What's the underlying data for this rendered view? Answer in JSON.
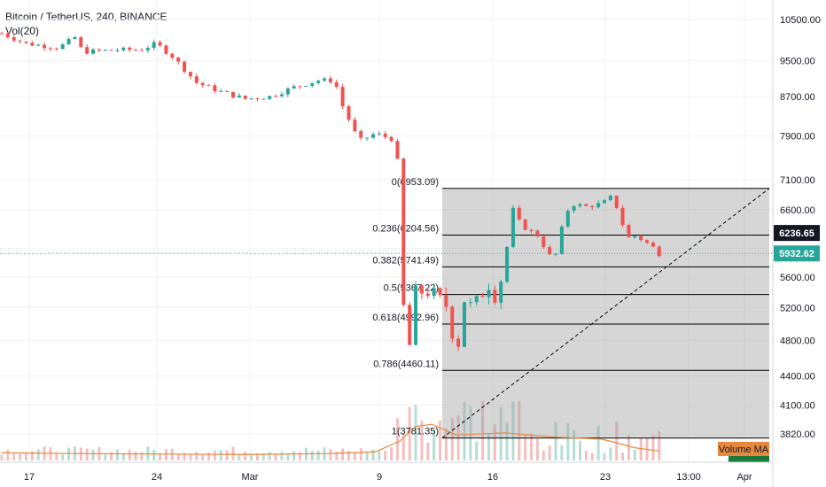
{
  "chart_data": {
    "type": "candlestick",
    "title": "Bitcoin / TetherUS, 240, BINANCE",
    "indicator_label": "Vol(20)",
    "volume_ma_label": "Volume MA",
    "y_scale": "log",
    "ylim": [
      3500,
      11000
    ],
    "y_ticks": [
      10500,
      9500,
      8700,
      7900,
      7100,
      6600,
      6000,
      5600,
      5200,
      4800,
      4400,
      4100,
      3820
    ],
    "y_tick_labels": [
      "10500.00",
      "9500.00",
      "8700.00",
      "7900.00",
      "7100.00",
      "6600.00",
      "6000.00",
      "5600.00",
      "5200.00",
      "4800.00",
      "4400.00",
      "4100.00",
      "3820.00"
    ],
    "x_labels": [
      "17",
      "24",
      "Mar",
      "9",
      "16",
      "23",
      "13:00",
      "Apr"
    ],
    "price_labels": [
      {
        "value": 6236.65,
        "text": "6236.65",
        "color": "#131722"
      },
      {
        "value": 5932.62,
        "text": "5932.62",
        "color": "#26a69a"
      }
    ],
    "fibonacci": {
      "levels": [
        {
          "ratio": "0",
          "price": 6953.09,
          "label": "0(6953.09)"
        },
        {
          "ratio": "0.236",
          "price": 6204.56,
          "label": "0.236(6204.56)"
        },
        {
          "ratio": "0.382",
          "price": 5741.49,
          "label": "0.382(5741.49)"
        },
        {
          "ratio": "0.5",
          "price": 5367.22,
          "label": "0.5(5367.22)"
        },
        {
          "ratio": "0.618",
          "price": 4992.96,
          "label": "0.618(4992.96)"
        },
        {
          "ratio": "0.786",
          "price": 4460.11,
          "label": "0.786(4460.11)"
        },
        {
          "ratio": "1",
          "price": 3781.35,
          "label": "1(3781.35)"
        }
      ]
    },
    "path": [
      {
        "t": 0,
        "p": 10150
      },
      {
        "t": 3,
        "p": 9900
      },
      {
        "t": 7,
        "p": 9800
      },
      {
        "t": 9,
        "p": 10050
      },
      {
        "t": 10,
        "p": 9700
      },
      {
        "t": 14,
        "p": 9750
      },
      {
        "t": 17,
        "p": 9750
      },
      {
        "t": 19,
        "p": 9900
      },
      {
        "t": 21,
        "p": 9600
      },
      {
        "t": 24,
        "p": 9000
      },
      {
        "t": 27,
        "p": 8800
      },
      {
        "t": 30,
        "p": 8650
      },
      {
        "t": 33,
        "p": 8700
      },
      {
        "t": 36,
        "p": 8900
      },
      {
        "t": 39,
        "p": 9050
      },
      {
        "t": 41,
        "p": 9050
      },
      {
        "t": 42,
        "p": 8500
      },
      {
        "t": 44,
        "p": 7800
      },
      {
        "t": 46,
        "p": 7950
      },
      {
        "t": 48,
        "p": 7850
      },
      {
        "t": 49,
        "p": 7300
      },
      {
        "t": 49.5,
        "p": 5200
      },
      {
        "t": 50.2,
        "p": 4700
      },
      {
        "t": 51,
        "p": 5400
      },
      {
        "t": 53,
        "p": 5400
      },
      {
        "t": 55,
        "p": 5200
      },
      {
        "t": 56,
        "p": 4600
      },
      {
        "t": 57,
        "p": 5300
      },
      {
        "t": 58,
        "p": 5200
      },
      {
        "t": 60,
        "p": 5500
      },
      {
        "t": 61,
        "p": 5300
      },
      {
        "t": 62,
        "p": 5850
      },
      {
        "t": 63,
        "p": 6600
      },
      {
        "t": 64,
        "p": 6350
      },
      {
        "t": 66,
        "p": 6200
      },
      {
        "t": 67,
        "p": 6000
      },
      {
        "t": 68,
        "p": 5800
      },
      {
        "t": 69,
        "p": 6300
      },
      {
        "t": 70,
        "p": 6700
      },
      {
        "t": 72,
        "p": 6650
      },
      {
        "t": 74,
        "p": 6700
      },
      {
        "t": 75,
        "p": 6800
      },
      {
        "t": 76,
        "p": 6600
      },
      {
        "t": 77,
        "p": 6150
      },
      {
        "t": 78,
        "p": 6200
      },
      {
        "t": 80,
        "p": 6050
      },
      {
        "t": 81,
        "p": 5930
      }
    ],
    "volume_ma_path": [
      {
        "t": 0,
        "v": 0.18
      },
      {
        "t": 10,
        "v": 0.16
      },
      {
        "t": 20,
        "v": 0.15
      },
      {
        "t": 30,
        "v": 0.14
      },
      {
        "t": 40,
        "v": 0.16
      },
      {
        "t": 46,
        "v": 0.2
      },
      {
        "t": 49,
        "v": 0.45
      },
      {
        "t": 51,
        "v": 0.8
      },
      {
        "t": 53,
        "v": 0.85
      },
      {
        "t": 56,
        "v": 0.6
      },
      {
        "t": 62,
        "v": 0.65
      },
      {
        "t": 68,
        "v": 0.55
      },
      {
        "t": 74,
        "v": 0.5
      },
      {
        "t": 78,
        "v": 0.3
      },
      {
        "t": 81,
        "v": 0.22
      }
    ],
    "volume_range": [
      0,
      1
    ],
    "colors": {
      "up": "#26a69a",
      "down": "#ef5350",
      "fib_line": "#000000",
      "fib_fill": "#9e9e9e",
      "volume_ma": "#e6893e",
      "last_price_line": "#26a69a"
    }
  }
}
